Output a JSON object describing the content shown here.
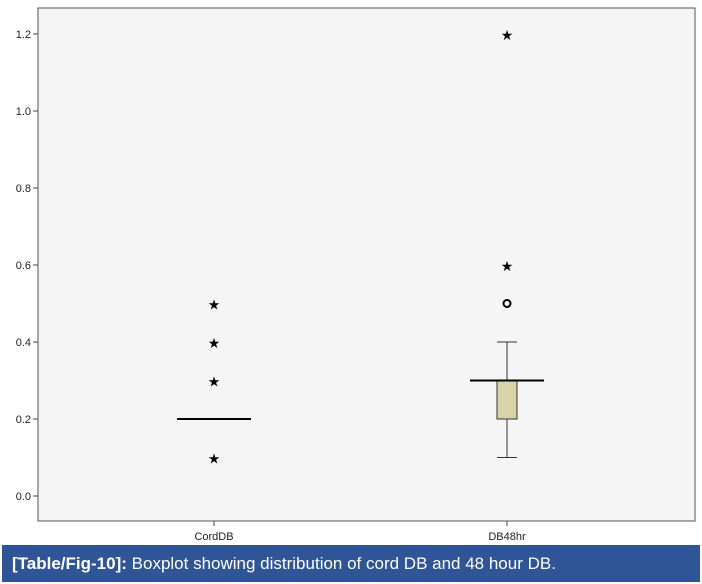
{
  "caption": {
    "label": "[Table/Fig-10]:",
    "text": " Boxplot showing distribution of cord DB and 48 hour DB."
  },
  "colors": {
    "plot_background": "#f5f5f5",
    "box_fill": "#d8d4a8",
    "caption_background": "#2f5597",
    "caption_text": "#ffffff"
  },
  "chart_data": {
    "type": "boxplot",
    "title": "",
    "xlabel": "",
    "ylabel": "",
    "ylim": [
      -0.04,
      1.26
    ],
    "yticks": [
      0.0,
      0.2,
      0.4,
      0.6,
      0.8,
      1.0,
      1.2
    ],
    "ytick_labels": [
      "0.0",
      "0.2",
      "0.4",
      "0.6",
      "0.8",
      "1.0",
      "1.2"
    ],
    "grid": false,
    "categories": [
      "CordDB",
      "DB48hr"
    ],
    "boxes": [
      {
        "category": "CordDB",
        "median": 0.2,
        "q1": 0.2,
        "q3": 0.2,
        "whisker_low": 0.2,
        "whisker_high": 0.2,
        "outliers": [],
        "extremes": [
          0.1,
          0.3,
          0.4,
          0.5
        ]
      },
      {
        "category": "DB48hr",
        "median": 0.3,
        "q1": 0.2,
        "q3": 0.3,
        "whisker_low": 0.1,
        "whisker_high": 0.4,
        "outliers": [
          0.5
        ],
        "extremes": [
          0.6,
          1.2
        ]
      }
    ]
  }
}
